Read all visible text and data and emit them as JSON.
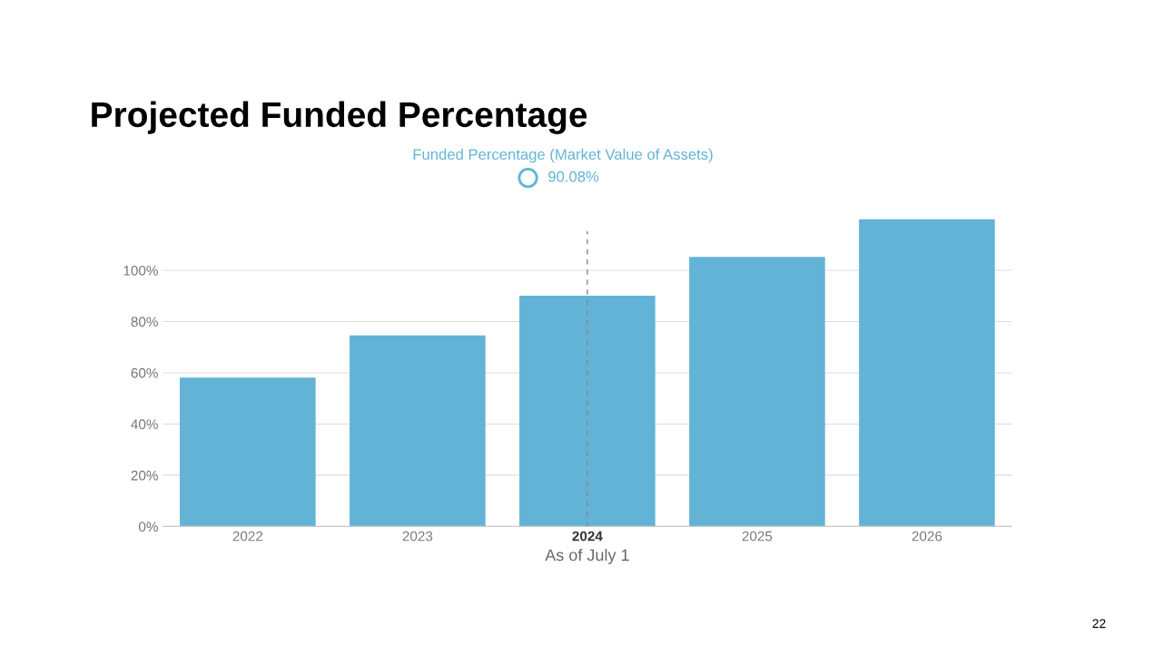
{
  "chart_data": {
    "type": "bar",
    "title": "Projected Funded Percentage",
    "xlabel": "As of July 1",
    "legend_title": "Funded Percentage (Market Value of Assets)",
    "categories": [
      "2022",
      "2023",
      "2024",
      "2025",
      "2026"
    ],
    "values": [
      58.1,
      74.6,
      90.08,
      105.2,
      120
    ],
    "color": "#63b3d6",
    "ylim": [
      0,
      120
    ],
    "yticks": [
      {
        "value": 0,
        "label": "0%"
      },
      {
        "value": 20,
        "label": "20%"
      },
      {
        "value": 40,
        "label": "40%"
      },
      {
        "value": 60,
        "label": "60%"
      },
      {
        "value": 80,
        "label": "80%"
      },
      {
        "value": 100,
        "label": "100%"
      }
    ],
    "grid": "y",
    "ref_lines": [
      {
        "axis": "x",
        "value": "2024",
        "color": "#888888",
        "line_style": "dashed"
      }
    ],
    "annotations": [
      "90.08%",
      "22"
    ]
  }
}
